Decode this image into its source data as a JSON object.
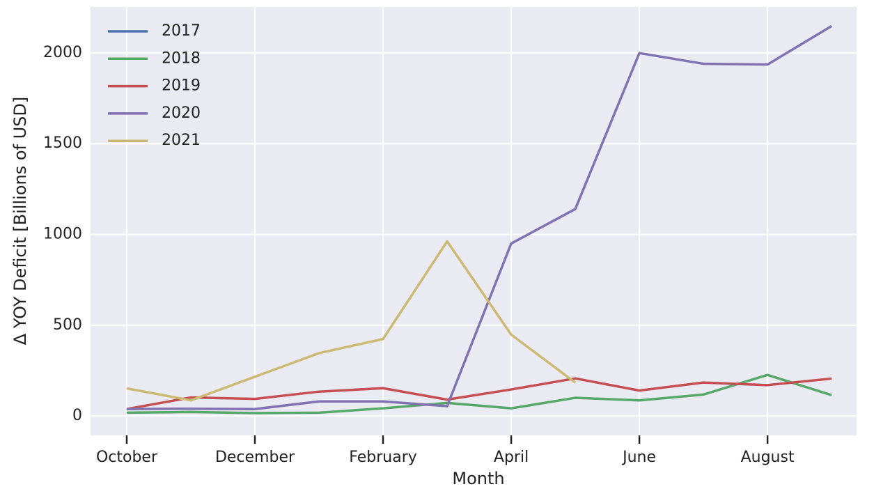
{
  "chart_data": {
    "type": "line",
    "x_label": "Month",
    "y_label": "Δ YOY Deficit [Billions of USD]",
    "categories": [
      "October",
      null,
      "December",
      null,
      "February",
      null,
      "April",
      null,
      "June",
      null,
      "August",
      null
    ],
    "series": [
      {
        "name": "2017",
        "color": "#4c72b0",
        "values": [
          null,
          null,
          null,
          null,
          null,
          null,
          null,
          null,
          null,
          null,
          null,
          null
        ]
      },
      {
        "name": "2018",
        "color": "#55a868",
        "values": [
          18,
          22,
          16,
          18,
          42,
          72,
          42,
          100,
          86,
          118,
          226,
          115
        ]
      },
      {
        "name": "2019",
        "color": "#c44e52",
        "values": [
          38,
          102,
          94,
          134,
          153,
          90,
          146,
          207,
          140,
          184,
          170,
          206
        ]
      },
      {
        "name": "2020",
        "color": "#8172b2",
        "values": [
          38,
          40,
          38,
          80,
          80,
          54,
          950,
          1140,
          1999,
          1940,
          1936,
          2148
        ]
      },
      {
        "name": "2021",
        "color": "#ccb974",
        "values": [
          152,
          86,
          216,
          346,
          424,
          962,
          448,
          184,
          null,
          null,
          null,
          null
        ]
      }
    ],
    "ylim": [
      -107,
      2253
    ],
    "yticks": [
      0,
      500,
      1000,
      1500,
      2000
    ],
    "grid": true,
    "legend": "upper left"
  }
}
